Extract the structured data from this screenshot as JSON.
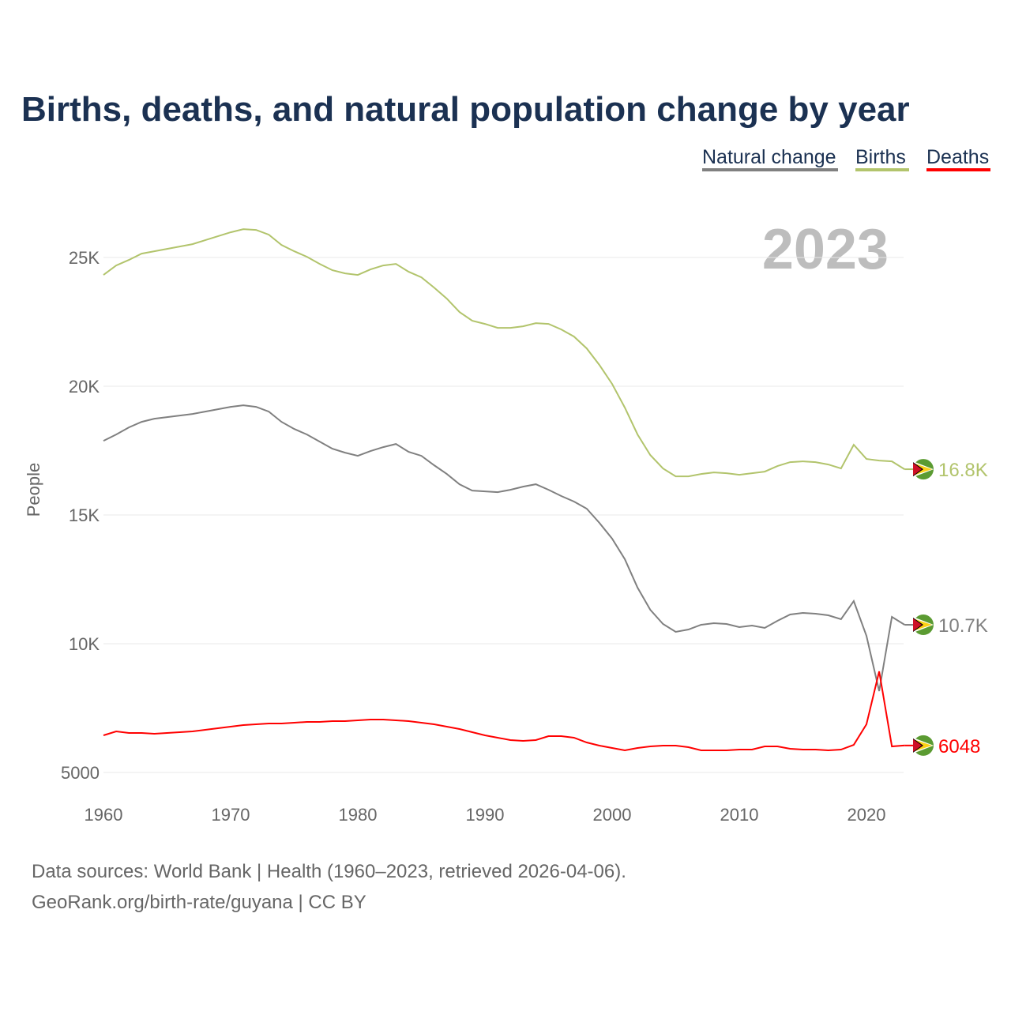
{
  "title": "Births, deaths, and natural population change by year",
  "year_watermark": "2023",
  "footer": {
    "line1": "Data sources: World Bank | Health (1960–2023, retrieved 2026-04-06).",
    "line2": "GeoRank.org/birth-rate/guyana | CC BY"
  },
  "chart_data": {
    "type": "line",
    "title": "Births, deaths, and natural population change by year",
    "xlabel": "",
    "ylabel": "People",
    "xlim": [
      1960,
      2023
    ],
    "ylim": [
      5000,
      27000
    ],
    "xticks": [
      1960,
      1970,
      1980,
      1990,
      2000,
      2010,
      2020
    ],
    "yticks": [
      {
        "v": 5000,
        "l": "5000"
      },
      {
        "v": 10000,
        "l": "10K"
      },
      {
        "v": 15000,
        "l": "15K"
      },
      {
        "v": 20000,
        "l": "20K"
      },
      {
        "v": 25000,
        "l": "25K"
      }
    ],
    "legend": "top-right",
    "x_start": 1960,
    "series": [
      {
        "name": "Natural change",
        "color": "#808080",
        "end_label": "10.7K",
        "values": [
          17881,
          18126,
          18402,
          18617,
          18740,
          18801,
          18862,
          18924,
          19016,
          19108,
          19200,
          19261,
          19200,
          19016,
          18617,
          18341,
          18126,
          17851,
          17575,
          17421,
          17298,
          17482,
          17636,
          17759,
          17452,
          17298,
          16931,
          16593,
          16194,
          15949,
          15918,
          15888,
          15980,
          16102,
          16194,
          15980,
          15735,
          15520,
          15244,
          14692,
          14079,
          13281,
          12177,
          11318,
          10766,
          10460,
          10551,
          10735,
          10797,
          10766,
          10643,
          10705,
          10613,
          10889,
          11134,
          11195,
          11165,
          11103,
          10950,
          11655,
          10306,
          8159,
          11042,
          10735
        ]
      },
      {
        "name": "Births",
        "color": "#b2c46c",
        "end_label": "16.8K",
        "values": [
          24322,
          24690,
          24905,
          25150,
          25242,
          25334,
          25426,
          25518,
          25672,
          25825,
          25978,
          26101,
          26070,
          25886,
          25488,
          25242,
          25027,
          24751,
          24506,
          24383,
          24322,
          24537,
          24690,
          24751,
          24445,
          24230,
          23831,
          23402,
          22880,
          22543,
          22420,
          22267,
          22267,
          22328,
          22451,
          22420,
          22205,
          21929,
          21469,
          20825,
          20089,
          19169,
          18126,
          17328,
          16807,
          16500,
          16500,
          16593,
          16654,
          16623,
          16562,
          16623,
          16685,
          16900,
          17053,
          17084,
          17053,
          16961,
          16807,
          17727,
          17176,
          17115,
          17084,
          16777
        ]
      },
      {
        "name": "Deaths",
        "color": "#ff0000",
        "end_label": "6048",
        "values": [
          6441,
          6595,
          6534,
          6534,
          6503,
          6534,
          6564,
          6595,
          6656,
          6717,
          6779,
          6840,
          6871,
          6901,
          6901,
          6932,
          6963,
          6963,
          6994,
          6994,
          7024,
          7055,
          7055,
          7024,
          6994,
          6932,
          6871,
          6779,
          6687,
          6564,
          6441,
          6349,
          6257,
          6227,
          6257,
          6411,
          6411,
          6349,
          6165,
          6043,
          5951,
          5859,
          5951,
          6012,
          6043,
          6043,
          5982,
          5859,
          5859,
          5859,
          5890,
          5890,
          6012,
          6012,
          5920,
          5890,
          5890,
          5859,
          5890,
          6074,
          6871,
          8926,
          6012,
          6048
        ]
      }
    ]
  }
}
